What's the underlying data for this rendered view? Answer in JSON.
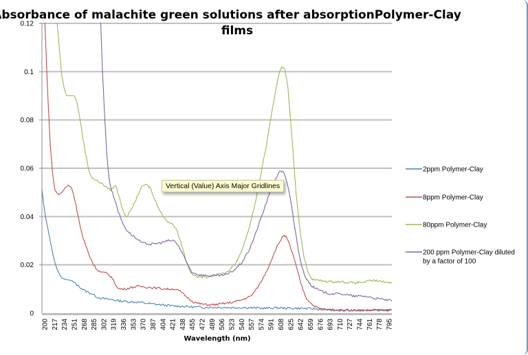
{
  "chart_data": {
    "type": "line",
    "title": "Absorbance of malachite green solutions after absorptionPolymer-Clay films",
    "title_lines": [
      "Absorbance of malachite green solutions after absorptionPolymer-Clay",
      "films"
    ],
    "xlabel": "Wavelength (nm)",
    "ylabel": "",
    "xlim": [
      200,
      795
    ],
    "ylim": [
      0,
      0.12
    ],
    "grid": "horizontal major",
    "legend_position": "right",
    "x_ticks": [
      "200",
      "217",
      "234",
      "251",
      "268",
      "285",
      "302",
      "319",
      "336",
      "353",
      "370",
      "387",
      "404",
      "421",
      "438",
      "455",
      "472",
      "489",
      "506",
      "523",
      "540",
      "557",
      "574",
      "591",
      "608",
      "625",
      "642",
      "659",
      "676",
      "693",
      "710",
      "727",
      "744",
      "761",
      "778",
      "795"
    ],
    "y_ticks": [
      "0",
      "0.02",
      "0.04",
      "0.06",
      "0.08",
      "0.1",
      "0.12"
    ],
    "y_tick_values": [
      0,
      0.02,
      0.04,
      0.06,
      0.08,
      0.1,
      0.12
    ],
    "series": [
      {
        "name": "2ppm Polymer-Clay",
        "color": "#4a7ebb",
        "points": [
          [
            200,
            0.051
          ],
          [
            203,
            0.045
          ],
          [
            206,
            0.04
          ],
          [
            210,
            0.035
          ],
          [
            214,
            0.03
          ],
          [
            218,
            0.025
          ],
          [
            222,
            0.021
          ],
          [
            226,
            0.018
          ],
          [
            230,
            0.016
          ],
          [
            234,
            0.0145
          ],
          [
            240,
            0.014
          ],
          [
            250,
            0.0135
          ],
          [
            258,
            0.012
          ],
          [
            266,
            0.0105
          ],
          [
            275,
            0.009
          ],
          [
            285,
            0.008
          ],
          [
            295,
            0.0065
          ],
          [
            305,
            0.006
          ],
          [
            320,
            0.0055
          ],
          [
            335,
            0.005
          ],
          [
            350,
            0.0047
          ],
          [
            365,
            0.0045
          ],
          [
            380,
            0.004
          ],
          [
            400,
            0.0035
          ],
          [
            420,
            0.003
          ],
          [
            440,
            0.0028
          ],
          [
            460,
            0.0025
          ],
          [
            480,
            0.0024
          ],
          [
            500,
            0.0024
          ],
          [
            520,
            0.0023
          ],
          [
            540,
            0.0023
          ],
          [
            560,
            0.0022
          ],
          [
            580,
            0.002
          ],
          [
            600,
            0.0022
          ],
          [
            620,
            0.002
          ],
          [
            640,
            0.002
          ],
          [
            660,
            0.0018
          ],
          [
            680,
            0.0015
          ],
          [
            700,
            0.0012
          ],
          [
            720,
            0.0012
          ],
          [
            740,
            0.0012
          ],
          [
            760,
            0.0012
          ],
          [
            780,
            0.0012
          ],
          [
            795,
            0.0012
          ]
        ]
      },
      {
        "name": "8ppm Polymer-Clay",
        "color": "#be4b48",
        "points": [
          [
            200,
            0.16
          ],
          [
            205,
            0.12
          ],
          [
            210,
            0.09
          ],
          [
            214,
            0.07
          ],
          [
            218,
            0.058
          ],
          [
            222,
            0.051
          ],
          [
            228,
            0.049
          ],
          [
            234,
            0.05
          ],
          [
            240,
            0.052
          ],
          [
            245,
            0.053
          ],
          [
            250,
            0.052
          ],
          [
            255,
            0.048
          ],
          [
            260,
            0.042
          ],
          [
            265,
            0.036
          ],
          [
            270,
            0.031
          ],
          [
            276,
            0.027
          ],
          [
            282,
            0.023
          ],
          [
            288,
            0.02
          ],
          [
            294,
            0.018
          ],
          [
            300,
            0.017
          ],
          [
            310,
            0.0165
          ],
          [
            318,
            0.015
          ],
          [
            325,
            0.012
          ],
          [
            330,
            0.01
          ],
          [
            340,
            0.01
          ],
          [
            350,
            0.0105
          ],
          [
            360,
            0.011
          ],
          [
            370,
            0.011
          ],
          [
            390,
            0.0105
          ],
          [
            410,
            0.01
          ],
          [
            425,
            0.01
          ],
          [
            435,
            0.009
          ],
          [
            445,
            0.007
          ],
          [
            455,
            0.005
          ],
          [
            465,
            0.004
          ],
          [
            480,
            0.0035
          ],
          [
            495,
            0.0035
          ],
          [
            510,
            0.004
          ],
          [
            525,
            0.0045
          ],
          [
            540,
            0.0055
          ],
          [
            555,
            0.007
          ],
          [
            565,
            0.01
          ],
          [
            575,
            0.014
          ],
          [
            585,
            0.019
          ],
          [
            595,
            0.025
          ],
          [
            603,
            0.029
          ],
          [
            610,
            0.032
          ],
          [
            615,
            0.0315
          ],
          [
            620,
            0.029
          ],
          [
            627,
            0.024
          ],
          [
            635,
            0.017
          ],
          [
            642,
            0.011
          ],
          [
            650,
            0.006
          ],
          [
            660,
            0.0035
          ],
          [
            670,
            0.002
          ],
          [
            680,
            0.0015
          ],
          [
            700,
            0.0012
          ],
          [
            720,
            0.0012
          ],
          [
            740,
            0.0012
          ],
          [
            760,
            0.0012
          ],
          [
            780,
            0.0012
          ],
          [
            795,
            0.0012
          ]
        ]
      },
      {
        "name": "80ppm Polymer-Clay",
        "color": "#98b954",
        "points": [
          [
            200,
            0.2
          ],
          [
            220,
            0.13
          ],
          [
            226,
            0.12
          ],
          [
            230,
            0.108
          ],
          [
            234,
            0.098
          ],
          [
            238,
            0.093
          ],
          [
            242,
            0.09
          ],
          [
            250,
            0.09
          ],
          [
            255,
            0.09
          ],
          [
            260,
            0.087
          ],
          [
            265,
            0.08
          ],
          [
            270,
            0.072
          ],
          [
            275,
            0.065
          ],
          [
            280,
            0.059
          ],
          [
            285,
            0.056
          ],
          [
            292,
            0.055
          ],
          [
            300,
            0.054
          ],
          [
            310,
            0.052
          ],
          [
            318,
            0.051
          ],
          [
            325,
            0.053
          ],
          [
            332,
            0.048
          ],
          [
            338,
            0.042
          ],
          [
            344,
            0.04
          ],
          [
            350,
            0.042
          ],
          [
            358,
            0.046
          ],
          [
            365,
            0.05
          ],
          [
            372,
            0.053
          ],
          [
            378,
            0.053
          ],
          [
            384,
            0.052
          ],
          [
            390,
            0.048
          ],
          [
            398,
            0.044
          ],
          [
            406,
            0.04
          ],
          [
            414,
            0.038
          ],
          [
            422,
            0.037
          ],
          [
            430,
            0.034
          ],
          [
            438,
            0.028
          ],
          [
            446,
            0.021
          ],
          [
            455,
            0.016
          ],
          [
            465,
            0.015
          ],
          [
            480,
            0.015
          ],
          [
            500,
            0.016
          ],
          [
            515,
            0.017
          ],
          [
            528,
            0.02
          ],
          [
            540,
            0.026
          ],
          [
            552,
            0.035
          ],
          [
            562,
            0.045
          ],
          [
            572,
            0.057
          ],
          [
            582,
            0.07
          ],
          [
            590,
            0.082
          ],
          [
            598,
            0.093
          ],
          [
            604,
            0.1
          ],
          [
            608,
            0.102
          ],
          [
            613,
            0.101
          ],
          [
            618,
            0.094
          ],
          [
            622,
            0.082
          ],
          [
            627,
            0.066
          ],
          [
            632,
            0.05
          ],
          [
            638,
            0.036
          ],
          [
            645,
            0.024
          ],
          [
            652,
            0.017
          ],
          [
            660,
            0.014
          ],
          [
            670,
            0.0135
          ],
          [
            690,
            0.013
          ],
          [
            710,
            0.013
          ],
          [
            730,
            0.0125
          ],
          [
            750,
            0.013
          ],
          [
            765,
            0.0135
          ],
          [
            780,
            0.013
          ],
          [
            795,
            0.0125
          ]
        ]
      },
      {
        "name": "200 ppm Polymer-Clay diluted by a factor of 100",
        "color": "#7e62a1",
        "points": [
          [
            200,
            0.3
          ],
          [
            296,
            0.16
          ],
          [
            300,
            0.12
          ],
          [
            303,
            0.1
          ],
          [
            307,
            0.08
          ],
          [
            310,
            0.067
          ],
          [
            314,
            0.056
          ],
          [
            318,
            0.051
          ],
          [
            324,
            0.047
          ],
          [
            330,
            0.042
          ],
          [
            336,
            0.038
          ],
          [
            342,
            0.035
          ],
          [
            350,
            0.033
          ],
          [
            360,
            0.031
          ],
          [
            370,
            0.029
          ],
          [
            385,
            0.0285
          ],
          [
            400,
            0.029
          ],
          [
            415,
            0.03
          ],
          [
            425,
            0.03
          ],
          [
            432,
            0.028
          ],
          [
            440,
            0.024
          ],
          [
            448,
            0.02
          ],
          [
            455,
            0.017
          ],
          [
            465,
            0.016
          ],
          [
            480,
            0.0155
          ],
          [
            500,
            0.0155
          ],
          [
            515,
            0.016
          ],
          [
            528,
            0.018
          ],
          [
            540,
            0.021
          ],
          [
            552,
            0.026
          ],
          [
            562,
            0.032
          ],
          [
            572,
            0.039
          ],
          [
            582,
            0.046
          ],
          [
            592,
            0.053
          ],
          [
            600,
            0.057
          ],
          [
            606,
            0.059
          ],
          [
            612,
            0.058
          ],
          [
            618,
            0.053
          ],
          [
            624,
            0.045
          ],
          [
            630,
            0.035
          ],
          [
            636,
            0.026
          ],
          [
            642,
            0.019
          ],
          [
            650,
            0.014
          ],
          [
            660,
            0.011
          ],
          [
            675,
            0.009
          ],
          [
            690,
            0.008
          ],
          [
            710,
            0.008
          ],
          [
            730,
            0.007
          ],
          [
            750,
            0.007
          ],
          [
            770,
            0.006
          ],
          [
            785,
            0.0055
          ],
          [
            795,
            0.005
          ]
        ]
      }
    ]
  },
  "tooltip": {
    "text": "Vertical (Value) Axis Major Gridlines"
  }
}
